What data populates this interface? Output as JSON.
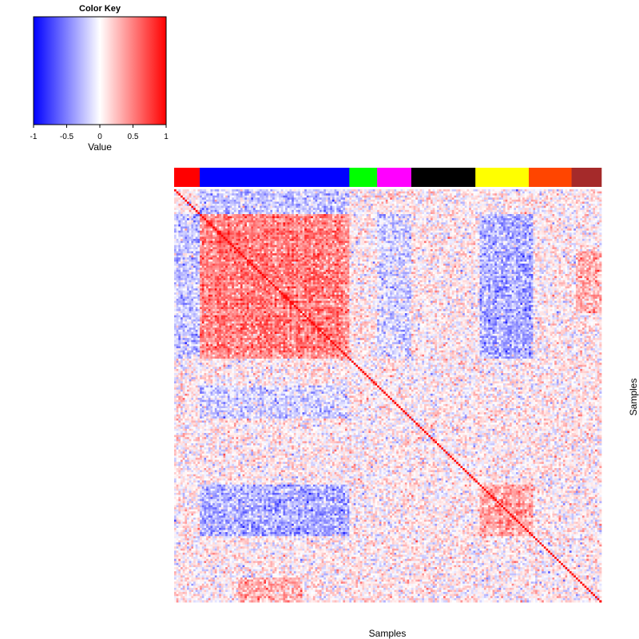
{
  "chart_data": {
    "type": "heatmap",
    "title": "",
    "xlabel": "Samples",
    "ylabel": "Samples",
    "matrix_size": 200,
    "value_range": [
      -1,
      1
    ],
    "diagonal_value": 1,
    "color_key": {
      "title": "Color Key",
      "xlabel": "Value",
      "ticks": [
        -1,
        -0.5,
        0,
        0.5,
        1
      ],
      "tick_labels": [
        "-1",
        "-0.5",
        "0",
        "0.5",
        "1"
      ],
      "colors": [
        "#0000ff",
        "#ffffff",
        "#ff0000"
      ]
    },
    "groups": [
      {
        "color": "#ff0000",
        "count": 12
      },
      {
        "color": "#0000ff",
        "count": 70
      },
      {
        "color": "#00ff00",
        "count": 13
      },
      {
        "color": "#ff00ff",
        "count": 16
      },
      {
        "color": "#000000",
        "count": 30
      },
      {
        "color": "#ffff00",
        "count": 25
      },
      {
        "color": "#ff4500",
        "count": 20
      },
      {
        "color": "#a52a2a",
        "count": 14
      }
    ],
    "blocks": [
      {
        "rows": [
          12,
          82
        ],
        "cols": [
          12,
          82
        ],
        "mean": 0.5
      },
      {
        "rows": [
          143,
          168
        ],
        "cols": [
          143,
          168
        ],
        "mean": 0.35
      },
      {
        "rows": [
          12,
          82
        ],
        "cols": [
          143,
          168
        ],
        "mean": -0.3
      },
      {
        "rows": [
          143,
          168
        ],
        "cols": [
          12,
          82
        ],
        "mean": -0.3
      },
      {
        "rows": [
          12,
          82
        ],
        "cols": [
          0,
          12
        ],
        "mean": -0.2
      },
      {
        "rows": [
          0,
          12
        ],
        "cols": [
          12,
          82
        ],
        "mean": -0.2
      },
      {
        "rows": [
          12,
          82
        ],
        "cols": [
          95,
          111
        ],
        "mean": -0.15
      },
      {
        "rows": [
          95,
          111
        ],
        "cols": [
          12,
          82
        ],
        "mean": -0.15
      },
      {
        "rows": [
          30,
          60
        ],
        "cols": [
          188,
          200
        ],
        "mean": 0.3
      },
      {
        "rows": [
          188,
          200
        ],
        "cols": [
          30,
          60
        ],
        "mean": 0.3
      }
    ],
    "background_mean": 0.05,
    "noise_sd": 0.18
  }
}
